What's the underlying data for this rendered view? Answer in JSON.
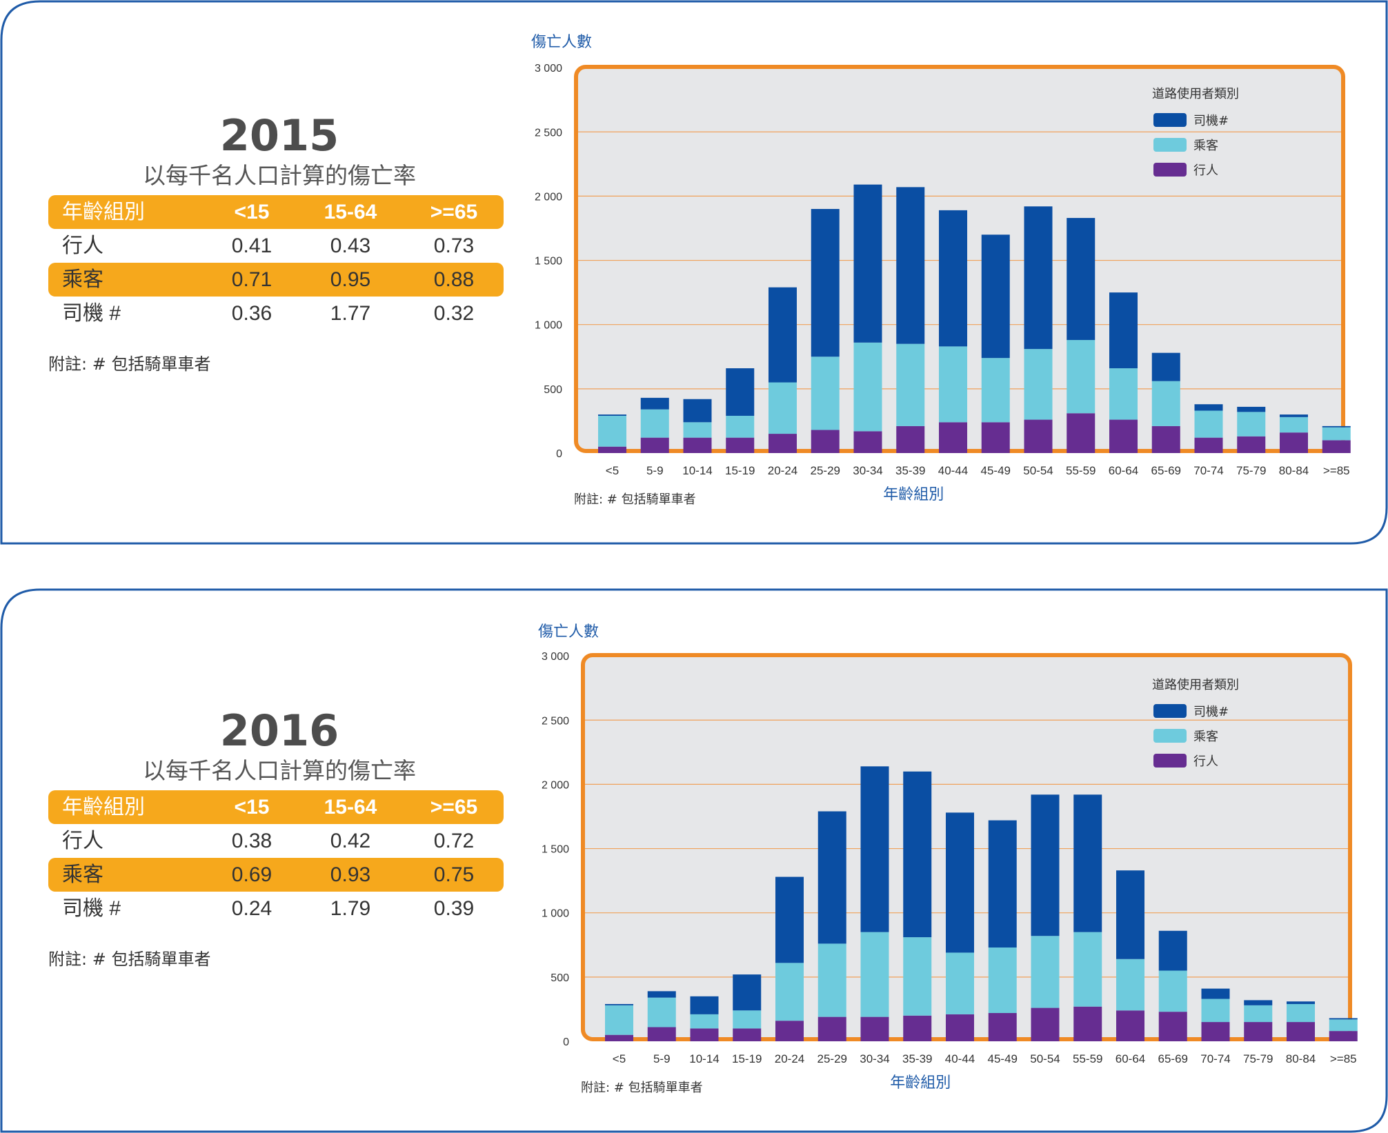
{
  "legend_title": "道路使用者類別",
  "note": "附註:  #  包括騎單車者",
  "table_header": [
    "年齡組別",
    "<15",
    "15-64",
    ">=65"
  ],
  "colors": {
    "driver": "#0a4ea3",
    "passenger": "#6ecbdd",
    "pedestrian": "#662d91",
    "frame": "#ef8a25",
    "table_band": "#f6a81c",
    "border": "#1f5ba8",
    "plot_bg": "#e6e7e9"
  },
  "panels": [
    {
      "year": "2015",
      "subtitle": "以每千名人口計算的傷亡率",
      "rows": [
        {
          "label": "行人",
          "values": [
            "0.41",
            "0.43",
            "0.73"
          ]
        },
        {
          "label": "乘客",
          "values": [
            "0.71",
            "0.95",
            "0.88"
          ]
        },
        {
          "label": "司機 #",
          "values": [
            "0.36",
            "1.77",
            "0.32"
          ]
        }
      ]
    },
    {
      "year": "2016",
      "subtitle": "以每千名人口計算的傷亡率",
      "rows": [
        {
          "label": "行人",
          "values": [
            "0.38",
            "0.42",
            "0.72"
          ]
        },
        {
          "label": "乘客",
          "values": [
            "0.69",
            "0.93",
            "0.75"
          ]
        },
        {
          "label": "司機 #",
          "values": [
            "0.24",
            "1.79",
            "0.39"
          ]
        }
      ]
    }
  ],
  "chart_data": [
    {
      "type": "bar",
      "stacked": true,
      "title": "",
      "ylabel": "傷亡人數",
      "xlabel": "年齡組別",
      "ylim": [
        0,
        3000
      ],
      "yticks": [
        "0",
        "500",
        "1 000",
        "1 500",
        "2 000",
        "2 500",
        "3 000"
      ],
      "ytick_values": [
        0,
        500,
        1000,
        1500,
        2000,
        2500,
        3000
      ],
      "grid": true,
      "legend_position": "top-right",
      "legend_title": "道路使用者類別",
      "categories": [
        "<5",
        "5-9",
        "10-14",
        "15-19",
        "20-24",
        "25-29",
        "30-34",
        "35-39",
        "40-44",
        "45-49",
        "50-54",
        "55-59",
        "60-64",
        "65-69",
        "70-74",
        "75-79",
        "80-84",
        ">=85"
      ],
      "series": [
        {
          "name": "行人",
          "values": [
            50,
            120,
            120,
            120,
            150,
            180,
            170,
            210,
            240,
            240,
            260,
            310,
            260,
            210,
            120,
            130,
            160,
            100
          ]
        },
        {
          "name": "乘客",
          "values": [
            240,
            220,
            120,
            170,
            400,
            570,
            690,
            640,
            590,
            500,
            550,
            570,
            400,
            350,
            210,
            190,
            120,
            100
          ]
        },
        {
          "name": "司機#",
          "values": [
            10,
            90,
            180,
            370,
            740,
            1150,
            1230,
            1220,
            1060,
            960,
            1110,
            950,
            590,
            220,
            50,
            40,
            20,
            10
          ]
        }
      ],
      "note": "附註:  #  包括騎單車者"
    },
    {
      "type": "bar",
      "stacked": true,
      "title": "",
      "ylabel": "傷亡人數",
      "xlabel": "年齡組別",
      "ylim": [
        0,
        3000
      ],
      "yticks": [
        "0",
        "500",
        "1 000",
        "1 500",
        "2 000",
        "2 500",
        "3 000"
      ],
      "ytick_values": [
        0,
        500,
        1000,
        1500,
        2000,
        2500,
        3000
      ],
      "grid": true,
      "legend_position": "top-right",
      "legend_title": "道路使用者類別",
      "categories": [
        "<5",
        "5-9",
        "10-14",
        "15-19",
        "20-24",
        "25-29",
        "30-34",
        "35-39",
        "40-44",
        "45-49",
        "50-54",
        "55-59",
        "60-64",
        "65-69",
        "70-74",
        "75-79",
        "80-84",
        ">=85"
      ],
      "series": [
        {
          "name": "行人",
          "values": [
            50,
            110,
            100,
            100,
            160,
            190,
            190,
            200,
            210,
            220,
            260,
            270,
            240,
            230,
            150,
            150,
            150,
            80
          ]
        },
        {
          "name": "乘客",
          "values": [
            230,
            230,
            110,
            140,
            450,
            570,
            660,
            610,
            480,
            510,
            560,
            580,
            400,
            320,
            180,
            130,
            140,
            90
          ]
        },
        {
          "name": "司機#",
          "values": [
            10,
            50,
            140,
            280,
            670,
            1030,
            1290,
            1290,
            1090,
            990,
            1100,
            1070,
            690,
            310,
            80,
            40,
            20,
            10
          ]
        }
      ],
      "note": "附註:  #  包括騎單車者"
    }
  ]
}
